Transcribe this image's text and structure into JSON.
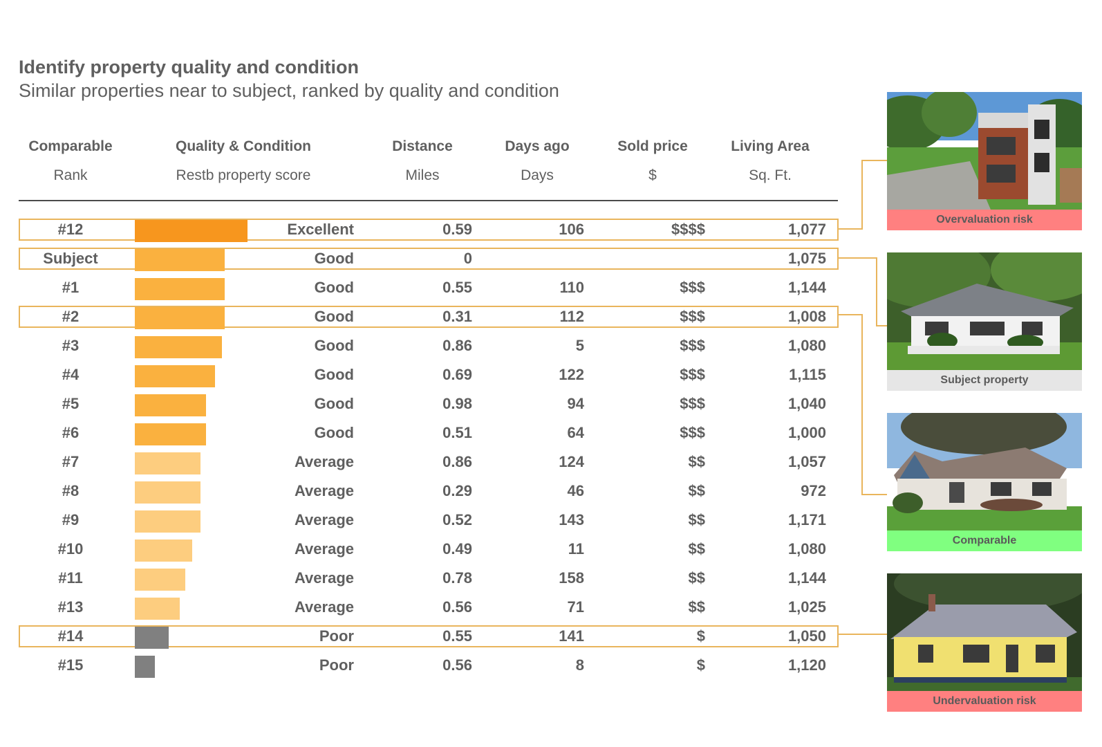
{
  "title": "Identify property quality and condition",
  "subtitle": "Similar properties near to subject, ranked by quality and condition",
  "columns": [
    {
      "header": "Comparable",
      "sub": "Rank"
    },
    {
      "header": "Quality & Condition",
      "sub": "Restb property score"
    },
    {
      "header": "Distance",
      "sub": "Miles"
    },
    {
      "header": "Days ago",
      "sub": "Days"
    },
    {
      "header": "Sold price",
      "sub": "$"
    },
    {
      "header": "Living Area",
      "sub": "Sq. Ft."
    }
  ],
  "colors": {
    "excellent": "#f7961e",
    "good": "#fab13f",
    "average": "#fdcd7f",
    "poor": "#808080",
    "highlight_border": "#e9b55c",
    "overvaluation": "#ff8080",
    "subject": "#e6e6e6",
    "comparable": "#80ff80",
    "undervaluation": "#ff8080"
  },
  "chart_data": {
    "type": "table",
    "title": "Identify property quality and condition",
    "subtitle": "Similar properties near to subject, ranked by quality and condition",
    "score_max": 100,
    "rows": [
      {
        "rank": "#12",
        "quality": "Excellent",
        "score": 100,
        "distance": "0.59",
        "days": "106",
        "price": "$$$$",
        "area": "1,077",
        "highlight": true
      },
      {
        "rank": "Subject",
        "quality": "Good",
        "score": 80,
        "distance": "0",
        "days": "",
        "price": "",
        "area": "1,075",
        "highlight": true
      },
      {
        "rank": "#1",
        "quality": "Good",
        "score": 80,
        "distance": "0.55",
        "days": "110",
        "price": "$$$",
        "area": "1,144",
        "highlight": false
      },
      {
        "rank": "#2",
        "quality": "Good",
        "score": 80,
        "distance": "0.31",
        "days": "112",
        "price": "$$$",
        "area": "1,008",
        "highlight": true
      },
      {
        "rank": "#3",
        "quality": "Good",
        "score": 77,
        "distance": "0.86",
        "days": "5",
        "price": "$$$",
        "area": "1,080",
        "highlight": false
      },
      {
        "rank": "#4",
        "quality": "Good",
        "score": 71,
        "distance": "0.69",
        "days": "122",
        "price": "$$$",
        "area": "1,115",
        "highlight": false
      },
      {
        "rank": "#5",
        "quality": "Good",
        "score": 63,
        "distance": "0.98",
        "days": "94",
        "price": "$$$",
        "area": "1,040",
        "highlight": false
      },
      {
        "rank": "#6",
        "quality": "Good",
        "score": 63,
        "distance": "0.51",
        "days": "64",
        "price": "$$$",
        "area": "1,000",
        "highlight": false
      },
      {
        "rank": "#7",
        "quality": "Average",
        "score": 58,
        "distance": "0.86",
        "days": "124",
        "price": "$$",
        "area": "1,057",
        "highlight": false
      },
      {
        "rank": "#8",
        "quality": "Average",
        "score": 58,
        "distance": "0.29",
        "days": "46",
        "price": "$$",
        "area": "972",
        "highlight": false
      },
      {
        "rank": "#9",
        "quality": "Average",
        "score": 58,
        "distance": "0.52",
        "days": "143",
        "price": "$$",
        "area": "1,171",
        "highlight": false
      },
      {
        "rank": "#10",
        "quality": "Average",
        "score": 51,
        "distance": "0.49",
        "days": "11",
        "price": "$$",
        "area": "1,080",
        "highlight": false
      },
      {
        "rank": "#11",
        "quality": "Average",
        "score": 45,
        "distance": "0.78",
        "days": "158",
        "price": "$$",
        "area": "1,144",
        "highlight": false
      },
      {
        "rank": "#13",
        "quality": "Average",
        "score": 40,
        "distance": "0.56",
        "days": "71",
        "price": "$$",
        "area": "1,025",
        "highlight": false
      },
      {
        "rank": "#14",
        "quality": "Poor",
        "score": 30,
        "distance": "0.55",
        "days": "141",
        "price": "$",
        "area": "1,050",
        "highlight": true
      },
      {
        "rank": "#15",
        "quality": "Poor",
        "score": 18,
        "distance": "0.56",
        "days": "8",
        "price": "$",
        "area": "1,120",
        "highlight": false
      }
    ]
  },
  "cards": [
    {
      "caption": "Overvaluation risk",
      "kind": "modern",
      "links_to": "#12"
    },
    {
      "caption": "Subject property",
      "kind": "ranch",
      "links_to": "Subject"
    },
    {
      "caption": "Comparable",
      "kind": "cottage",
      "links_to": "#2"
    },
    {
      "caption": "Undervaluation risk",
      "kind": "yellow",
      "links_to": "#14"
    }
  ]
}
